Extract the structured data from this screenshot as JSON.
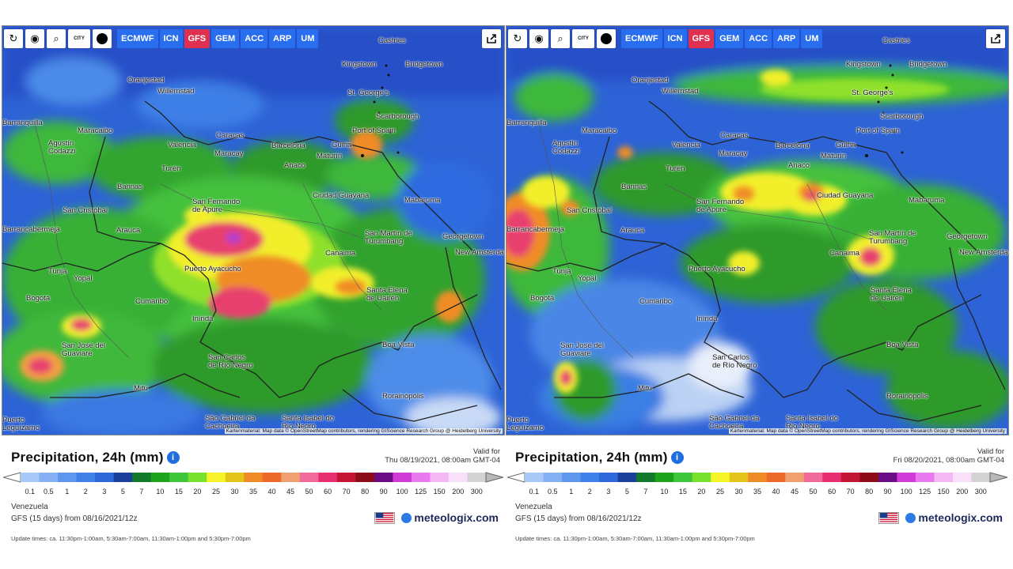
{
  "panels": [
    {
      "id": "left",
      "valid_for_label": "Valid for",
      "valid_time": "Thu 08/19/2021, 08:00am GMT-04"
    },
    {
      "id": "right",
      "valid_for_label": "Valid for",
      "valid_time": "Fri 08/20/2021, 08:00am GMT-04"
    }
  ],
  "toolbar": {
    "city_label": "CITY",
    "models": [
      "ECMWF",
      "ICN",
      "GFS",
      "GEM",
      "ACC",
      "ARP",
      "UM"
    ],
    "active_model": "GFS"
  },
  "map": {
    "credit": "Kartenmaterial: Map data © OpenStreetMap contributors, rendering GIScience Research Group @ Heidelberg University",
    "places": [
      "Castries",
      "Kingstown",
      "Bridgetown",
      "Oranjestad",
      "Willemstad",
      "St. George's",
      "Scarborough",
      "Port of Spain",
      "Barranquilla",
      "Maracaibo",
      "Agustín Codazzi",
      "Caracas",
      "Valencia",
      "Maracay",
      "Barcelona",
      "Güiria",
      "Maturín",
      "Anaco",
      "Turén",
      "Barinas",
      "San Fernando de Apure",
      "Ciudad Guayana",
      "Mabaruma",
      "San Cristóbal",
      "Barrancabermeja",
      "Arauca",
      "San Martín de Turumbang",
      "Georgetown",
      "New Amsterdam",
      "Canaima",
      "Puerto Ayacucho",
      "Tunja",
      "Yopal",
      "Santa Elena de Uairén",
      "Bogotá",
      "Cumaribo",
      "Inírida",
      "San José del Guaviare",
      "Boa Vista",
      "San Carlos de Río Negro",
      "Mitú",
      "Rorainópolis",
      "São Gabriel da Cachoeira",
      "Santa Isabel do Rio Negro",
      "Puerto Leguízamo"
    ]
  },
  "legend": {
    "title": "Precipitation, 24h (mm)",
    "info_icon": "info-icon",
    "ticks": [
      "0.1",
      "0.5",
      "1",
      "2",
      "3",
      "5",
      "7",
      "10",
      "15",
      "20",
      "25",
      "30",
      "35",
      "40",
      "45",
      "50",
      "60",
      "70",
      "80",
      "90",
      "100",
      "125",
      "150",
      "200",
      "300"
    ],
    "colors": [
      "#a8c8f8",
      "#86b0f4",
      "#5f97ee",
      "#3f80e8",
      "#2f68d8",
      "#1d3f9c",
      "#127a2a",
      "#1fa31f",
      "#3ec73a",
      "#79e02e",
      "#f4f428",
      "#e3c41a",
      "#f08c28",
      "#ec6a2a",
      "#f0a070",
      "#f06a9a",
      "#e62e70",
      "#c41436",
      "#8c0c18",
      "#6a0c84",
      "#d03ad6",
      "#ea78ee",
      "#f4b8f4",
      "#f8e0f8",
      "#d2d2d2"
    ],
    "region": "Venezuela",
    "run": "GFS (15 days) from 08/16/2021/12z",
    "brand": "meteologix.com",
    "update_times": "Update times: ca. 11:30pm-1:00am, 5:30am-7:00am, 11:30am-1:00pm and 5:30pm-7:00pm"
  }
}
